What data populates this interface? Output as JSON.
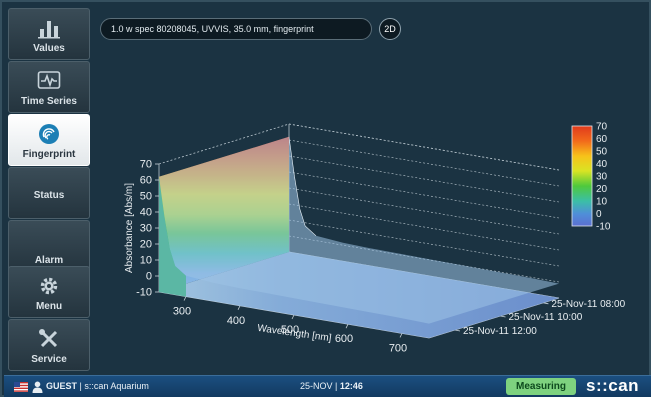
{
  "sidebar": {
    "items": [
      {
        "label": "Values",
        "icon": "bar-chart-icon",
        "active": false
      },
      {
        "label": "Time Series",
        "icon": "waveform-icon",
        "active": false
      },
      {
        "label": "Fingerprint",
        "icon": "fingerprint-icon",
        "active": true
      },
      {
        "label": "Status",
        "icon": "",
        "active": false
      },
      {
        "label": "Alarm",
        "icon": "",
        "active": false
      },
      {
        "label": "Menu",
        "icon": "gear-icon",
        "active": false
      },
      {
        "label": "Service",
        "icon": "wrench-screwdriver-icon",
        "active": false
      }
    ]
  },
  "header": {
    "spec_label": "1.0 w spec 80208045, UVVIS, 35.0 mm, fingerprint",
    "mode_button": "2D"
  },
  "chart_data": {
    "type": "surface3d",
    "title": "",
    "xlabel": "Wavelength [nm]",
    "ylabel": "Absorbance [Abs/m]",
    "x_ticks": [
      "300",
      "400",
      "500",
      "600",
      "700"
    ],
    "y_ticks": [
      "70",
      "60",
      "50",
      "40",
      "30",
      "20",
      "10",
      "0",
      "-10"
    ],
    "z_ticks": [
      "25-Nov-11 08:00",
      "25-Nov-11 10:00",
      "25-Nov-11 12:00"
    ],
    "ylim": [
      -10,
      70
    ],
    "xlim": [
      250,
      750
    ],
    "grid": true,
    "profile": {
      "wavelength": [
        250,
        260,
        270,
        280,
        300,
        350,
        400,
        500,
        600,
        700,
        750
      ],
      "absorbance": [
        62,
        38,
        18,
        8,
        3,
        1.5,
        1,
        0.5,
        0,
        -0.5,
        -1
      ]
    },
    "colorbar": {
      "ticks": [
        "70",
        "60",
        "50",
        "40",
        "30",
        "20",
        "10",
        "0",
        "-10"
      ],
      "colors": [
        "#e03a1c",
        "#f26a1b",
        "#f7a41a",
        "#f4e21c",
        "#bde32a",
        "#4fc93c",
        "#3bbfa6",
        "#4f8ed9",
        "#5c6fd0"
      ]
    }
  },
  "status_bar": {
    "user": "GUEST",
    "location": "s::can Aquarium",
    "date": "25-NOV",
    "time": "12:46",
    "measuring": "Measuring",
    "brand": "s::can"
  },
  "colors": {
    "background": "#1b3342",
    "status_bar": "#123a60",
    "measuring": "#7ed27f"
  }
}
